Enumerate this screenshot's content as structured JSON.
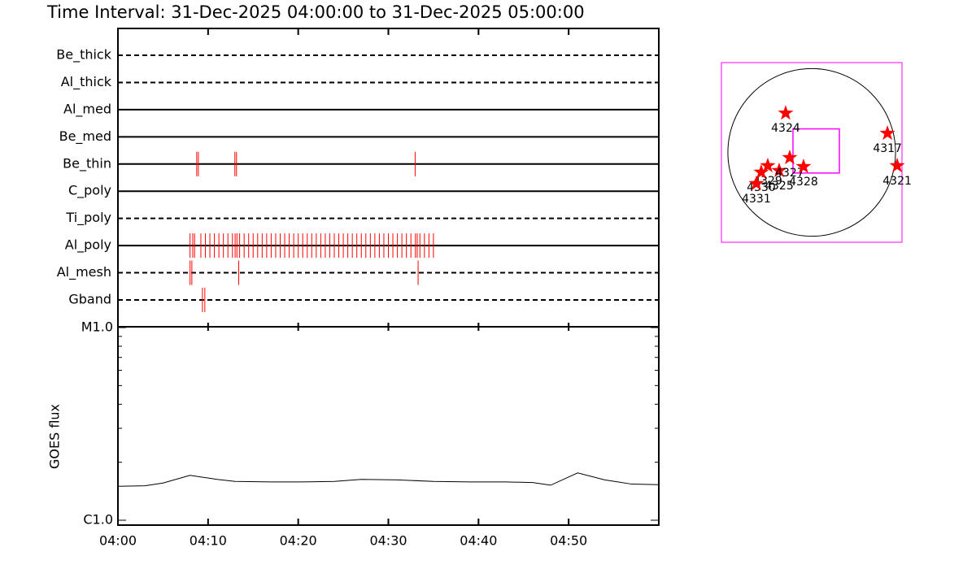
{
  "chart_data": [
    {
      "type": "timeline",
      "title": "Time Interval: 31-Dec-2025 04:00:00 to 31-Dec-2025 05:00:00",
      "xlim": [
        0,
        60
      ],
      "event_color": "#ff0000",
      "rows": [
        {
          "name": "Be_thick",
          "style": "dashed",
          "events": []
        },
        {
          "name": "Al_thick",
          "style": "dashed",
          "events": []
        },
        {
          "name": "Al_med",
          "style": "solid",
          "events": []
        },
        {
          "name": "Be_med",
          "style": "solid",
          "events": []
        },
        {
          "name": "Be_thin",
          "style": "solid",
          "events": [
            8.74,
            8.92,
            12.97,
            13.15,
            32.97
          ]
        },
        {
          "name": "C_poly",
          "style": "solid",
          "events": []
        },
        {
          "name": "Ti_poly",
          "style": "dashed",
          "events": []
        },
        {
          "name": "Al_poly",
          "style": "solid",
          "events": [
            8.0,
            8.3,
            8.5,
            9.2,
            9.7,
            10.2,
            10.7,
            11.2,
            11.7,
            12.2,
            12.7,
            13.0,
            13.2,
            13.5,
            14.0,
            14.5,
            15.0,
            15.5,
            16.0,
            16.5,
            17.0,
            17.5,
            18.0,
            18.5,
            19.0,
            19.5,
            20.0,
            20.5,
            21.0,
            21.5,
            22.0,
            22.5,
            23.0,
            23.5,
            24.0,
            24.5,
            25.0,
            25.5,
            26.0,
            26.5,
            27.0,
            27.5,
            28.0,
            28.5,
            29.0,
            29.5,
            30.0,
            30.5,
            31.0,
            31.5,
            32.0,
            32.5,
            33.0,
            33.2,
            33.5,
            34.0,
            34.5,
            35.0
          ]
        },
        {
          "name": "Al_mesh",
          "style": "dashed",
          "events": [
            8.0,
            8.2,
            13.4,
            33.3
          ]
        },
        {
          "name": "Gband",
          "style": "dashed",
          "events": [
            9.37,
            9.64
          ]
        }
      ]
    },
    {
      "type": "line",
      "ylabel": "GOES flux",
      "log": true,
      "color": "#000000",
      "x": [
        0,
        3,
        5,
        8,
        11,
        13,
        17,
        20,
        24,
        27,
        31,
        35,
        39,
        43,
        46,
        48,
        51,
        54,
        57,
        60
      ],
      "values": [
        1.5e-06,
        1.51e-06,
        1.56e-06,
        1.71e-06,
        1.63e-06,
        1.59e-06,
        1.58e-06,
        1.58e-06,
        1.59e-06,
        1.63e-06,
        1.62e-06,
        1.59e-06,
        1.58e-06,
        1.58e-06,
        1.57e-06,
        1.52e-06,
        1.76e-06,
        1.62e-06,
        1.54e-06,
        1.53e-06
      ],
      "xlim": [
        0,
        60
      ],
      "xticks": [
        {
          "value": 0,
          "label": "04:00"
        },
        {
          "value": 10,
          "label": "04:10"
        },
        {
          "value": 20,
          "label": "04:20"
        },
        {
          "value": 30,
          "label": "04:30"
        },
        {
          "value": 40,
          "label": "04:40"
        },
        {
          "value": 50,
          "label": "04:50"
        }
      ],
      "ylim": [
        1e-06,
        1e-05
      ],
      "yticks": [
        {
          "value": 1e-06,
          "label": "C1.0"
        },
        {
          "value": 1e-05,
          "label": "M1.0"
        }
      ],
      "yminor": [
        2e-06,
        3e-06,
        4e-06,
        5e-06,
        6e-06,
        7e-06,
        8e-06,
        9e-06
      ]
    },
    {
      "type": "scatter",
      "xlim": [
        -1050,
        1050
      ],
      "ylim": [
        -1050,
        1050
      ],
      "solar_radius": 975,
      "frame_color": "#ff00ff",
      "marker_color": "#ff0000",
      "fov": {
        "x": [
          -218,
          322
        ],
        "y": [
          -241,
          275
        ]
      },
      "points": [
        {
          "name": "4324",
          "x": -303,
          "y": 459
        },
        {
          "name": "4317",
          "x": 881,
          "y": 223
        },
        {
          "name": "4321",
          "x": 994,
          "y": -156
        },
        {
          "name": "4329",
          "x": -511,
          "y": -156
        },
        {
          "name": "4330",
          "x": -587,
          "y": -232
        },
        {
          "name": "4325",
          "x": -379,
          "y": -213
        },
        {
          "name": "4327",
          "x": -256,
          "y": -62
        },
        {
          "name": "4328",
          "x": -95,
          "y": -166
        },
        {
          "name": "4331",
          "x": -644,
          "y": -365
        }
      ]
    }
  ]
}
